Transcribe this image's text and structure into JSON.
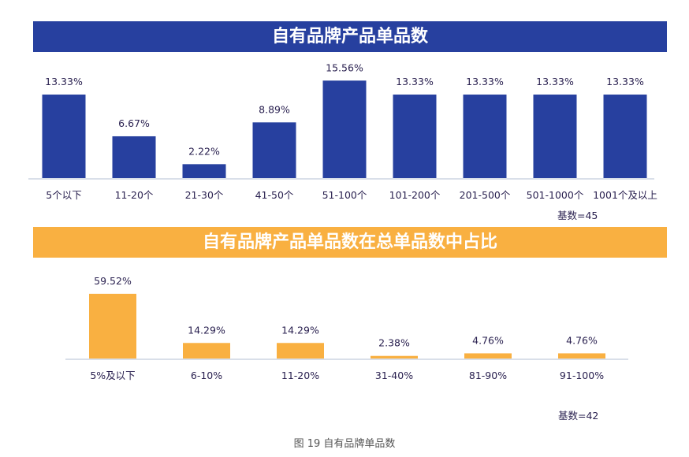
{
  "chart_data": [
    {
      "type": "bar",
      "title": "自有品牌产品单品数",
      "categories": [
        "5个以下",
        "11-20个",
        "21-30个",
        "41-50个",
        "51-100个",
        "101-200个",
        "201-500个",
        "501-1000个",
        "1001个及以上"
      ],
      "values": [
        13.33,
        6.67,
        2.22,
        8.89,
        15.56,
        13.33,
        13.33,
        13.33,
        13.33
      ],
      "data_labels": [
        "13.33%",
        "6.67%",
        "2.22%",
        "8.89%",
        "15.56%",
        "13.33%",
        "13.33%",
        "13.33%",
        "13.33%"
      ],
      "base_note": "基数=45",
      "color": "#27409f",
      "xlabel": "",
      "ylabel": "",
      "ylim": [
        0,
        16
      ],
      "grid": false
    },
    {
      "type": "bar",
      "title": "自有品牌产品单品数在总单品数中占比",
      "categories": [
        "5%及以下",
        "6-10%",
        "11-20%",
        "31-40%",
        "81-90%",
        "91-100%"
      ],
      "values": [
        59.52,
        14.29,
        14.29,
        2.38,
        4.76,
        4.76
      ],
      "data_labels": [
        "59.52%",
        "14.29%",
        "14.29%",
        "2.38%",
        "4.76%",
        "4.76%"
      ],
      "base_note": "基数=42",
      "color": "#f9b041",
      "xlabel": "",
      "ylabel": "",
      "ylim": [
        0,
        60
      ],
      "grid": false
    }
  ],
  "caption": "图 19 自有品牌单品数"
}
